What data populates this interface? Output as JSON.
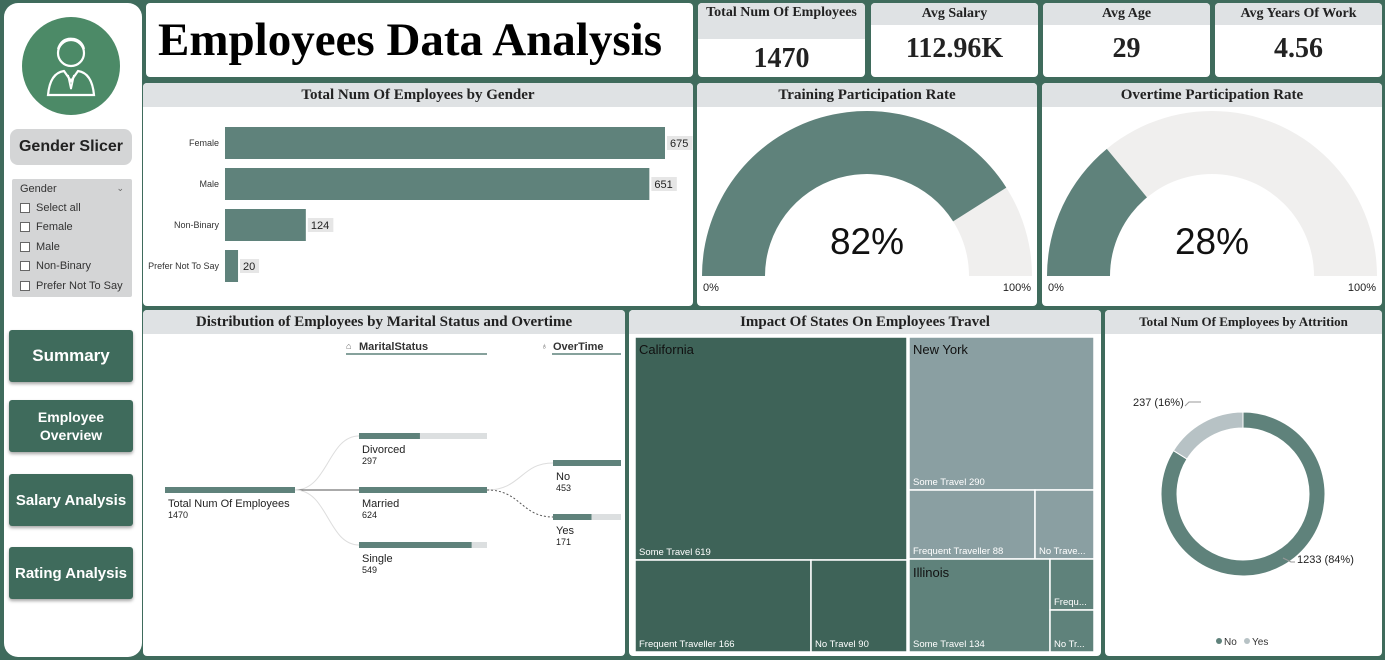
{
  "sidebar": {
    "avatar_icon": "user-avatar-icon",
    "slicer_title": "Gender Slicer",
    "slicer": {
      "header": "Gender",
      "options": [
        "Select all",
        "Female",
        "Male",
        "Non-Binary",
        "Prefer Not To Say"
      ]
    },
    "nav": [
      {
        "label": "Summary"
      },
      {
        "label": "Employee Overview"
      },
      {
        "label": "Salary Analysis"
      },
      {
        "label": "Rating Analysis"
      }
    ]
  },
  "header": {
    "title": "Employees Data Analysis"
  },
  "kpis": [
    {
      "label": "Total Num Of Employees",
      "value": "1470"
    },
    {
      "label": "Avg Salary",
      "value": "112.96K"
    },
    {
      "label": "Avg Age",
      "value": "29"
    },
    {
      "label": "Avg Years Of Work",
      "value": "4.56"
    }
  ],
  "colors": {
    "accent": "#5f827b",
    "dark": "#3e6358",
    "light": "#8a9fa2",
    "track": "#f0efee",
    "bg": "#3f6b5c"
  },
  "chart_data": [
    {
      "type": "bar",
      "title": "Total Num Of Employees by Gender",
      "categories": [
        "Female",
        "Male",
        "Non-Binary",
        "Prefer Not To Say"
      ],
      "values": [
        675,
        651,
        124,
        20
      ],
      "xlim": [
        0,
        675
      ]
    },
    {
      "type": "gauge",
      "title": "Training Participation Rate",
      "value": 82,
      "value_label": "82%",
      "min_label": "0%",
      "max_label": "100%"
    },
    {
      "type": "gauge",
      "title": "Overtime Participation Rate",
      "value": 28,
      "value_label": "28%",
      "min_label": "0%",
      "max_label": "100%"
    },
    {
      "type": "decomposition-tree",
      "title": "Distribution of Employees by Marital Status and Overtime",
      "levels": [
        "MaritalStatus",
        "OverTime"
      ],
      "root": {
        "label": "Total Num Of Employees",
        "value": 1470
      },
      "marital": [
        {
          "label": "Divorced",
          "value": 297
        },
        {
          "label": "Married",
          "value": 624
        },
        {
          "label": "Single",
          "value": 549
        }
      ],
      "overtime": [
        {
          "label": "No",
          "value": 453
        },
        {
          "label": "Yes",
          "value": 171
        }
      ]
    },
    {
      "type": "treemap",
      "title": "Impact Of States On Employees Travel",
      "groups": [
        {
          "name": "California",
          "cells": [
            {
              "label": "Some Travel 619",
              "value": 619
            },
            {
              "label": "Frequent Traveller 166",
              "value": 166
            },
            {
              "label": "No Travel 90",
              "value": 90
            }
          ]
        },
        {
          "name": "New York",
          "cells": [
            {
              "label": "Some Travel 290",
              "value": 290
            },
            {
              "label": "Frequent Traveller 88",
              "value": 88
            },
            {
              "label": "No Trave...",
              "value": 45
            }
          ]
        },
        {
          "name": "Illinois",
          "cells": [
            {
              "label": "Some Travel 134",
              "value": 134
            },
            {
              "label": "Frequ...",
              "value": 24
            },
            {
              "label": "No Tr...",
              "value": 14
            }
          ]
        }
      ]
    },
    {
      "type": "pie",
      "title": "Total Num Of Employees by Attrition",
      "slices": [
        {
          "name": "No",
          "value": 1233,
          "label": "1233 (84%)"
        },
        {
          "name": "Yes",
          "value": 237,
          "label": "237 (16%)"
        }
      ],
      "legend": [
        "No",
        "Yes"
      ]
    }
  ]
}
